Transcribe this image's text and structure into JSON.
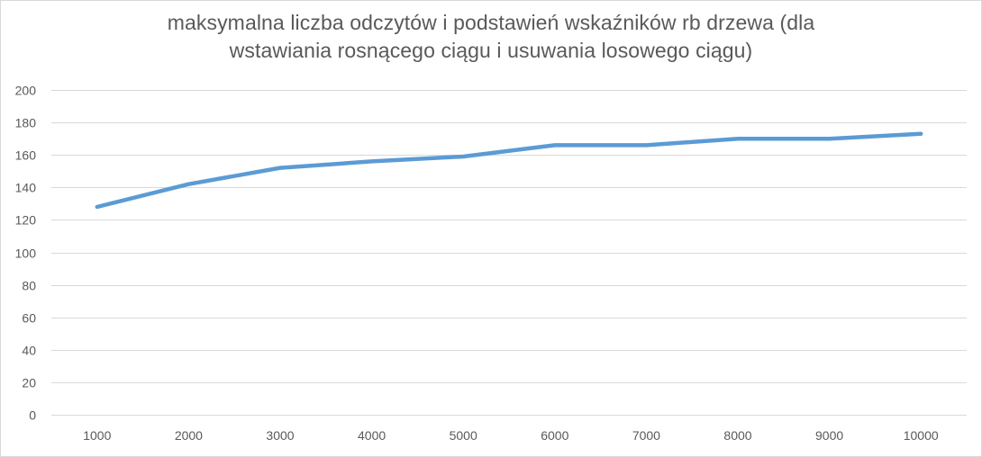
{
  "chart_data": {
    "type": "line",
    "title_lines": [
      "maksymalna liczba odczytów i podstawień wskaźników rb drzewa (dla",
      "wstawiania rosnącego ciągu i usuwania losowego ciągu)"
    ],
    "categories": [
      "1000",
      "2000",
      "3000",
      "4000",
      "5000",
      "6000",
      "7000",
      "8000",
      "9000",
      "10000"
    ],
    "series": [
      {
        "values": [
          128,
          142,
          152,
          156,
          159,
          166,
          166,
          170,
          170,
          173
        ],
        "color": "#5b9bd5"
      }
    ],
    "ylim": [
      0,
      200
    ],
    "yticks": [
      0,
      20,
      40,
      60,
      80,
      100,
      120,
      140,
      160,
      180,
      200
    ],
    "grid": true,
    "legend": "none",
    "colors": {
      "gridline": "#d9d9d9",
      "axis_text": "#595959",
      "title_text": "#595959"
    }
  }
}
